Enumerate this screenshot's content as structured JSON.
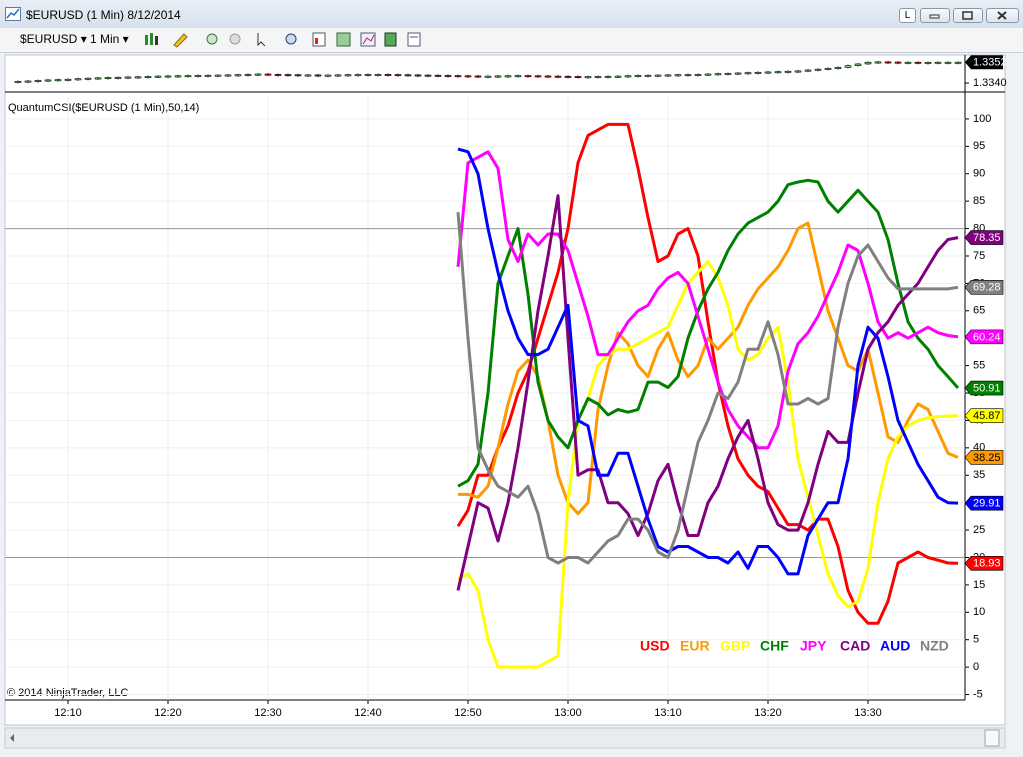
{
  "window": {
    "title": "$EURUSD (1 Min)  8/12/2014",
    "lock_button": "L"
  },
  "toolbar": {
    "instrument": "$EURUSD",
    "interval": "1 Min"
  },
  "footer": {
    "copyright": "© 2014 NinjaTrader, LLC"
  },
  "chart_data": [
    {
      "type": "candlestick",
      "up_color": "#7ed67e",
      "down_color": "#e0202a",
      "x": [
        "12:05",
        "12:06",
        "12:07",
        "12:08",
        "12:09",
        "12:10",
        "12:11",
        "12:12",
        "12:13",
        "12:14",
        "12:15",
        "12:16",
        "12:17",
        "12:18",
        "12:19",
        "12:20",
        "12:21",
        "12:22",
        "12:23",
        "12:24",
        "12:25",
        "12:26",
        "12:27",
        "12:28",
        "12:29",
        "12:30",
        "12:31",
        "12:32",
        "12:33",
        "12:34",
        "12:35",
        "12:36",
        "12:37",
        "12:38",
        "12:39",
        "12:40",
        "12:41",
        "12:42",
        "12:43",
        "12:44",
        "12:45",
        "12:46",
        "12:47",
        "12:48",
        "12:49",
        "12:50",
        "12:51",
        "12:52",
        "12:53",
        "12:54",
        "12:55",
        "12:56",
        "12:57",
        "12:58",
        "12:59",
        "13:00",
        "13:01",
        "13:02",
        "13:03",
        "13:04",
        "13:05",
        "13:06",
        "13:07",
        "13:08",
        "13:09",
        "13:10",
        "13:11",
        "13:12",
        "13:13",
        "13:14",
        "13:15",
        "13:16",
        "13:17",
        "13:18",
        "13:19",
        "13:20",
        "13:21",
        "13:22",
        "13:23",
        "13:24",
        "13:25",
        "13:26",
        "13:27",
        "13:28",
        "13:29",
        "13:30",
        "13:31",
        "13:32",
        "13:33",
        "13:34",
        "13:35",
        "13:36",
        "13:37",
        "13:38",
        "13:39"
      ],
      "values": [
        1.3341,
        1.33412,
        1.33415,
        1.33418,
        1.3342,
        1.33422,
        1.33425,
        1.33428,
        1.3343,
        1.33432,
        1.33433,
        1.33435,
        1.33436,
        1.33438,
        1.3344,
        1.33441,
        1.33442,
        1.33443,
        1.33444,
        1.33445,
        1.33446,
        1.33447,
        1.33448,
        1.3345,
        1.33452,
        1.3345,
        1.33449,
        1.33448,
        1.33447,
        1.33447,
        1.33446,
        1.33446,
        1.33447,
        1.33448,
        1.33449,
        1.3345,
        1.3345,
        1.33449,
        1.33448,
        1.33447,
        1.33446,
        1.33445,
        1.33444,
        1.33443,
        1.33442,
        1.33441,
        1.3344,
        1.3344,
        1.33441,
        1.33442,
        1.33443,
        1.33442,
        1.33441,
        1.3344,
        1.33439,
        1.33438,
        1.33437,
        1.33437,
        1.33438,
        1.33439,
        1.3344,
        1.33442,
        1.33444,
        1.33445,
        1.33446,
        1.33447,
        1.33448,
        1.33449,
        1.3345,
        1.33452,
        1.33454,
        1.33456,
        1.33458,
        1.3346,
        1.33462,
        1.33464,
        1.33466,
        1.33468,
        1.3347,
        1.33475,
        1.3348,
        1.33485,
        1.3349,
        1.335,
        1.3351,
        1.3352,
        1.33522,
        1.33521,
        1.3352,
        1.3352,
        1.33519,
        1.33519,
        1.3352,
        1.3352,
        1.3352
      ],
      "xlim": [
        "12:04",
        "13:40"
      ],
      "ylim": [
        1.3336,
        1.3355
      ],
      "yticks": [
        {
          "value": 1.334,
          "label": "1.3340"
        }
      ]
    },
    {
      "type": "line",
      "title": "QuantumCSI($EURUSD (1 Min),50,14)",
      "grid": true,
      "legend": "lower right",
      "hlines": [
        80,
        20
      ],
      "x": [
        "12:49",
        "12:50",
        "12:51",
        "12:52",
        "12:53",
        "12:54",
        "12:55",
        "12:56",
        "12:57",
        "12:58",
        "12:59",
        "13:00",
        "13:01",
        "13:02",
        "13:03",
        "13:04",
        "13:05",
        "13:06",
        "13:07",
        "13:08",
        "13:09",
        "13:10",
        "13:11",
        "13:12",
        "13:13",
        "13:14",
        "13:15",
        "13:16",
        "13:17",
        "13:18",
        "13:19",
        "13:20",
        "13:21",
        "13:22",
        "13:23",
        "13:24",
        "13:25",
        "13:26",
        "13:27",
        "13:28",
        "13:29",
        "13:30",
        "13:31",
        "13:32",
        "13:33",
        "13:34",
        "13:35",
        "13:36",
        "13:37",
        "13:38",
        "13:39"
      ],
      "series": [
        {
          "name": "USD",
          "color": "#ff0000",
          "values": [
            25.7,
            28.6,
            35,
            35,
            40,
            44,
            50,
            54,
            60,
            66,
            72,
            80,
            92,
            97,
            98,
            99,
            99,
            99,
            91,
            82,
            74,
            75,
            79,
            80,
            75,
            63,
            52,
            44,
            38,
            35,
            33,
            32,
            29,
            26,
            26,
            25,
            27,
            27,
            22,
            14,
            10,
            8,
            8,
            12,
            19,
            20,
            21,
            20,
            19.5,
            19,
            18.93
          ]
        },
        {
          "name": "EUR",
          "color": "#ff9900",
          "values": [
            31.5,
            31.5,
            31,
            33,
            40,
            48,
            54,
            56,
            53,
            45,
            35,
            30,
            28,
            30,
            47,
            55,
            61,
            59,
            55,
            53,
            58,
            61,
            56,
            53,
            55,
            60,
            58,
            60,
            62,
            66,
            69,
            71,
            73,
            76,
            80,
            81,
            73,
            65,
            60,
            55,
            54,
            58,
            50,
            42,
            41,
            45,
            48,
            47,
            43,
            39,
            38.25
          ]
        },
        {
          "name": "GBP",
          "color": "#ffff00",
          "values": [
            16,
            17,
            14,
            5,
            0,
            0,
            0,
            0,
            0,
            1,
            2,
            30,
            45,
            49,
            55,
            57,
            58,
            58,
            59,
            60,
            61,
            62,
            66,
            70,
            72,
            74,
            71,
            66,
            58,
            56,
            57,
            60,
            62,
            52,
            38,
            31,
            24,
            17,
            13,
            11,
            12,
            18,
            30,
            38,
            42,
            44,
            45,
            45.5,
            45.7,
            45.8,
            45.87
          ]
        },
        {
          "name": "CHF",
          "color": "#008000",
          "values": [
            33,
            34,
            37,
            50,
            70,
            75,
            80,
            68,
            52,
            45,
            42,
            40,
            45,
            49,
            48,
            46,
            47,
            46.5,
            47,
            52,
            52,
            51,
            53,
            60,
            65,
            69,
            72,
            76,
            79,
            81,
            82,
            83,
            85,
            88,
            88.5,
            88.8,
            88.5,
            85,
            83,
            85,
            87,
            85,
            83,
            78,
            70,
            63,
            60,
            58,
            55,
            53,
            50.91
          ]
        },
        {
          "name": "JPY",
          "color": "#ff00ff",
          "values": [
            73,
            92,
            93,
            94,
            91,
            78,
            74,
            79,
            77,
            79,
            79,
            76,
            70,
            64,
            57,
            57,
            60,
            63,
            65,
            66,
            69,
            71,
            72,
            70,
            64,
            58,
            52,
            47,
            44,
            42,
            40,
            40,
            44,
            54,
            59,
            61,
            64,
            68,
            72,
            77,
            76,
            70,
            63,
            60,
            61,
            60,
            61,
            62,
            61,
            60.5,
            60.24
          ]
        },
        {
          "name": "CAD",
          "color": "#800080",
          "values": [
            14,
            22,
            30,
            29,
            23,
            30,
            40,
            52,
            65,
            75,
            86,
            60,
            35,
            36,
            36,
            30,
            30,
            28,
            24,
            28,
            34,
            37,
            30,
            24,
            24,
            30,
            33,
            38,
            42,
            45,
            38,
            30,
            26,
            25,
            25,
            30,
            37,
            43,
            41,
            41,
            50,
            58,
            61,
            63,
            66,
            68,
            70,
            73,
            76,
            78,
            78.35
          ]
        },
        {
          "name": "AUD",
          "color": "#0000ff",
          "values": [
            94.5,
            94,
            90,
            80,
            72,
            65,
            60,
            57,
            57,
            58,
            62,
            66,
            45,
            44,
            35,
            35,
            39,
            39,
            33,
            27,
            22,
            21,
            22,
            22,
            21,
            20,
            20,
            19,
            21,
            18,
            22,
            22,
            20,
            17,
            17,
            24,
            27,
            30,
            30,
            38,
            55,
            62,
            60,
            53,
            45,
            41,
            37,
            34,
            31,
            30,
            29.91
          ]
        },
        {
          "name": "NZD",
          "color": "#808080",
          "values": [
            83,
            60,
            40,
            36,
            33,
            32,
            31,
            33,
            28,
            20,
            19,
            20,
            20,
            19,
            21,
            23,
            24,
            27,
            27,
            25,
            21,
            20,
            25,
            33,
            41,
            45,
            50,
            49,
            52,
            58,
            58,
            63,
            57,
            48,
            48,
            49,
            48,
            49,
            62,
            70,
            75,
            77,
            74,
            71,
            69,
            69,
            69,
            69,
            69,
            69,
            69.28
          ]
        }
      ],
      "xlim": [
        "12:04",
        "13:40"
      ],
      "ylim": [
        -6,
        104
      ],
      "xticks": [
        "12:10",
        "12:20",
        "12:30",
        "12:40",
        "12:50",
        "13:00",
        "13:10",
        "13:20",
        "13:30"
      ],
      "yticks": [
        -5,
        0,
        5,
        10,
        15,
        20,
        25,
        30,
        35,
        40,
        45,
        50,
        55,
        60,
        65,
        70,
        75,
        80,
        85,
        90,
        95,
        100
      ]
    }
  ]
}
